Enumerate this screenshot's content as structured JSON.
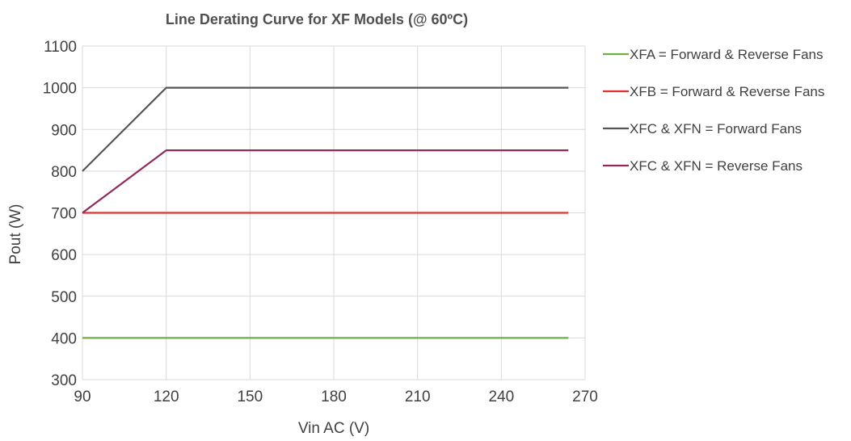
{
  "chart_data": {
    "type": "line",
    "title": "Line Derating Curve for XF Models (@ 60ºC)",
    "xlabel": "Vin AC (V)",
    "ylabel": "Pout (W)",
    "xlim": [
      90,
      270
    ],
    "ylim": [
      300,
      1100
    ],
    "xticks": [
      90,
      120,
      150,
      180,
      210,
      240,
      270
    ],
    "yticks": [
      300,
      400,
      500,
      600,
      700,
      800,
      900,
      1000,
      1100
    ],
    "grid": true,
    "legend_position": "right",
    "series": [
      {
        "name": "XFA = Forward & Reverse Fans",
        "color": "#70ad47",
        "points": [
          [
            90,
            400
          ],
          [
            264,
            400
          ]
        ]
      },
      {
        "name": "XFB = Forward & Reverse Fans",
        "color": "#e03030",
        "points": [
          [
            90,
            700
          ],
          [
            264,
            700
          ]
        ]
      },
      {
        "name": "XFC & XFN = Forward Fans",
        "color": "#555555",
        "points": [
          [
            90,
            800
          ],
          [
            120,
            1000
          ],
          [
            264,
            1000
          ]
        ]
      },
      {
        "name": "XFC & XFN = Reverse Fans",
        "color": "#8e2a5e",
        "points": [
          [
            90,
            700
          ],
          [
            120,
            850
          ],
          [
            264,
            850
          ]
        ]
      }
    ]
  }
}
